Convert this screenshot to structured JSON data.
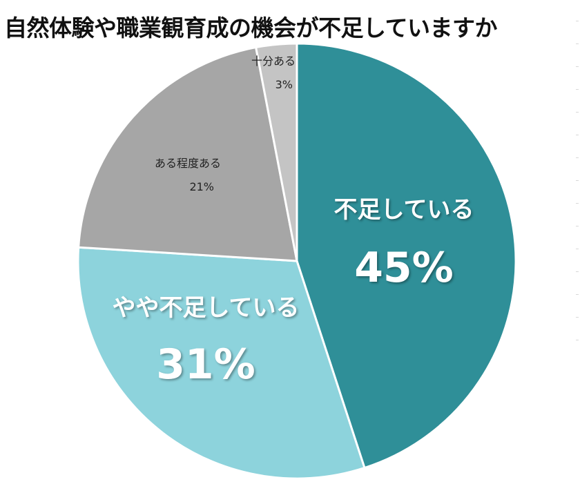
{
  "chart_data": {
    "type": "pie",
    "title": "自然体験や職業観育成の機会が不足していますか",
    "categories": [
      "不足している",
      "やや不足している",
      "ある程度ある",
      "十分ある"
    ],
    "values": [
      45,
      31,
      21,
      3
    ],
    "unit": "%",
    "colors": [
      "#2f8f98",
      "#8dd3dc",
      "#a6a6a6",
      "#c4c4c4"
    ],
    "start_angle": "12 o'clock",
    "direction": "clockwise",
    "data_labels": [
      "45%",
      "31%",
      "21%",
      "3%"
    ],
    "legend": "none (labels inside slices)"
  },
  "labels": {
    "s1_name": "不足している",
    "s1_pct": "45%",
    "s2_name": "やや不足している",
    "s2_pct": "31%",
    "s3_name": "ある程度ある",
    "s3_pct": "21%",
    "s4_name": "十分ある",
    "s4_pct": "3%"
  }
}
